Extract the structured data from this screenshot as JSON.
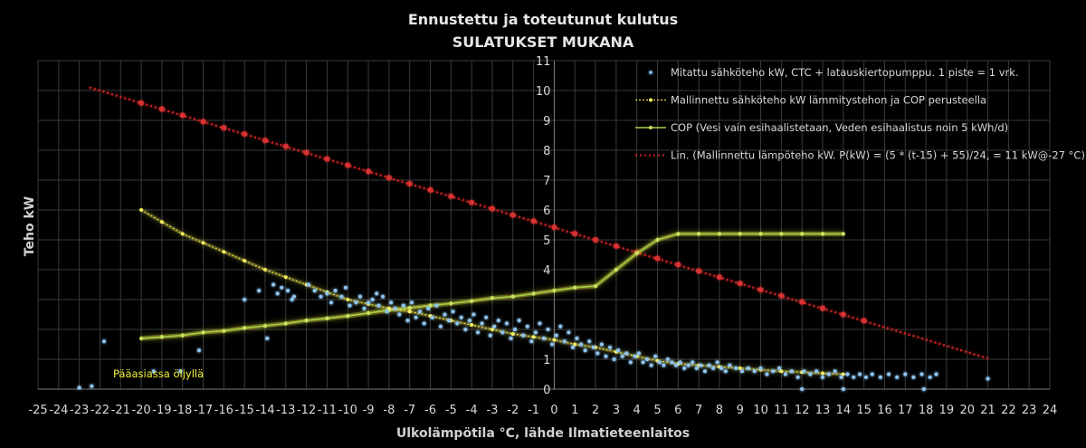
{
  "chart_data": {
    "type": "scatter",
    "title": "Ennustettu ja toteutunut kulutus",
    "subtitle": "SULATUKSET MUKANA",
    "xlabel": "Ulkolämpötila °C, lähde Ilmatieteenlaitos",
    "ylabel": "Teho kW",
    "xlim": [
      -25,
      24
    ],
    "ylim": [
      0,
      11
    ],
    "x_ticks": [
      -25,
      -24,
      -23,
      -22,
      -21,
      -20,
      -19,
      -18,
      -17,
      -16,
      -15,
      -14,
      -13,
      -12,
      -11,
      -10,
      -9,
      -8,
      -7,
      -6,
      -5,
      -4,
      -3,
      -2,
      -1,
      0,
      1,
      2,
      3,
      4,
      5,
      6,
      7,
      8,
      9,
      10,
      11,
      12,
      13,
      14,
      15,
      16,
      17,
      18,
      19,
      20,
      21,
      22,
      23,
      24
    ],
    "y_ticks": [
      0,
      1,
      2,
      3,
      4,
      5,
      6,
      7,
      8,
      9,
      10,
      11
    ],
    "y_tick_labels": [
      "0",
      "1",
      "",
      "",
      "4",
      "5",
      "6",
      "7",
      "8",
      "9",
      "10",
      "11"
    ],
    "grid": true,
    "legend_position": "top-right",
    "annotation": "Pääasiassa öljyllä",
    "series": [
      {
        "name": "Mitattu sähköteho kW, CTC + latauskiertopumppu.  1 piste = 1 vrk.",
        "kind": "scatter",
        "color": "#8ec4f0",
        "points": [
          [
            -23,
            0.05
          ],
          [
            -22.4,
            0.1
          ],
          [
            -21.8,
            1.6
          ],
          [
            -19.4,
            0.6
          ],
          [
            -18.1,
            0.6
          ],
          [
            -17.2,
            1.3
          ],
          [
            -15,
            3.0
          ],
          [
            -14.3,
            3.3
          ],
          [
            -13.9,
            1.7
          ],
          [
            -13.6,
            3.5
          ],
          [
            -13.4,
            3.2
          ],
          [
            -13.2,
            3.4
          ],
          [
            -12.9,
            3.3
          ],
          [
            -12.7,
            3.0
          ],
          [
            -12.6,
            3.1
          ],
          [
            -11.9,
            3.5
          ],
          [
            -11.6,
            3.3
          ],
          [
            -11.3,
            3.1
          ],
          [
            -11.0,
            3.2
          ],
          [
            -10.8,
            2.9
          ],
          [
            -10.6,
            3.3
          ],
          [
            -10.3,
            3.1
          ],
          [
            -10.1,
            3.4
          ],
          [
            -9.9,
            2.8
          ],
          [
            -9.6,
            2.9
          ],
          [
            -9.4,
            3.1
          ],
          [
            -9.2,
            2.7
          ],
          [
            -9.0,
            2.9
          ],
          [
            -8.8,
            3.0
          ],
          [
            -8.6,
            3.2
          ],
          [
            -8.5,
            2.8
          ],
          [
            -8.3,
            3.1
          ],
          [
            -8.1,
            2.6
          ],
          [
            -7.9,
            2.9
          ],
          [
            -7.7,
            2.7
          ],
          [
            -7.5,
            2.5
          ],
          [
            -7.3,
            2.8
          ],
          [
            -7.1,
            2.3
          ],
          [
            -6.9,
            2.9
          ],
          [
            -6.7,
            2.4
          ],
          [
            -6.5,
            2.6
          ],
          [
            -6.3,
            2.2
          ],
          [
            -6.1,
            2.7
          ],
          [
            -5.9,
            2.4
          ],
          [
            -5.7,
            2.8
          ],
          [
            -5.5,
            2.1
          ],
          [
            -5.3,
            2.5
          ],
          [
            -5.1,
            2.3
          ],
          [
            -4.9,
            2.6
          ],
          [
            -4.7,
            2.2
          ],
          [
            -4.5,
            2.4
          ],
          [
            -4.3,
            2.0
          ],
          [
            -4.1,
            2.3
          ],
          [
            -3.9,
            2.5
          ],
          [
            -3.7,
            1.9
          ],
          [
            -3.5,
            2.2
          ],
          [
            -3.3,
            2.4
          ],
          [
            -3.1,
            1.8
          ],
          [
            -2.9,
            2.1
          ],
          [
            -2.7,
            2.3
          ],
          [
            -2.5,
            1.9
          ],
          [
            -2.3,
            2.2
          ],
          [
            -2.1,
            1.7
          ],
          [
            -1.9,
            2.0
          ],
          [
            -1.7,
            2.3
          ],
          [
            -1.5,
            1.8
          ],
          [
            -1.3,
            2.1
          ],
          [
            -1.1,
            1.6
          ],
          [
            -0.9,
            1.9
          ],
          [
            -0.7,
            2.2
          ],
          [
            -0.5,
            1.7
          ],
          [
            -0.3,
            2.0
          ],
          [
            -0.1,
            1.5
          ],
          [
            0.1,
            1.8
          ],
          [
            0.3,
            2.1
          ],
          [
            0.5,
            1.6
          ],
          [
            0.7,
            1.9
          ],
          [
            0.9,
            1.4
          ],
          [
            1.1,
            1.7
          ],
          [
            1.3,
            1.5
          ],
          [
            1.5,
            1.3
          ],
          [
            1.7,
            1.6
          ],
          [
            1.9,
            1.4
          ],
          [
            2.1,
            1.2
          ],
          [
            2.3,
            1.5
          ],
          [
            2.5,
            1.1
          ],
          [
            2.7,
            1.4
          ],
          [
            2.9,
            1.0
          ],
          [
            3.1,
            1.3
          ],
          [
            3.3,
            1.1
          ],
          [
            3.5,
            1.2
          ],
          [
            3.7,
            0.9
          ],
          [
            3.9,
            1.1
          ],
          [
            4.1,
            1.2
          ],
          [
            4.3,
            0.9
          ],
          [
            4.5,
            1.0
          ],
          [
            4.7,
            0.8
          ],
          [
            4.9,
            1.1
          ],
          [
            5.1,
            0.9
          ],
          [
            5.3,
            0.8
          ],
          [
            5.5,
            1.0
          ],
          [
            5.7,
            0.9
          ],
          [
            5.9,
            0.8
          ],
          [
            6.1,
            0.9
          ],
          [
            6.3,
            0.7
          ],
          [
            6.5,
            0.8
          ],
          [
            6.7,
            0.9
          ],
          [
            6.9,
            0.7
          ],
          [
            7.1,
            0.8
          ],
          [
            7.3,
            0.6
          ],
          [
            7.5,
            0.8
          ],
          [
            7.7,
            0.7
          ],
          [
            7.9,
            0.9
          ],
          [
            8.1,
            0.7
          ],
          [
            8.3,
            0.6
          ],
          [
            8.5,
            0.8
          ],
          [
            8.8,
            0.7
          ],
          [
            9.1,
            0.6
          ],
          [
            9.4,
            0.7
          ],
          [
            9.7,
            0.6
          ],
          [
            10.0,
            0.7
          ],
          [
            10.3,
            0.5
          ],
          [
            10.6,
            0.6
          ],
          [
            10.9,
            0.7
          ],
          [
            11.2,
            0.5
          ],
          [
            11.5,
            0.6
          ],
          [
            11.8,
            0.4
          ],
          [
            12.1,
            0.6
          ],
          [
            12.4,
            0.5
          ],
          [
            12.7,
            0.6
          ],
          [
            13.0,
            0.4
          ],
          [
            13.3,
            0.5
          ],
          [
            13.6,
            0.6
          ],
          [
            13.9,
            0.4
          ],
          [
            14.2,
            0.5
          ],
          [
            14.5,
            0.4
          ],
          [
            14.8,
            0.5
          ],
          [
            15.1,
            0.4
          ],
          [
            15.4,
            0.5
          ],
          [
            15.8,
            0.4
          ],
          [
            16.2,
            0.5
          ],
          [
            16.6,
            0.4
          ],
          [
            17.0,
            0.5
          ],
          [
            17.4,
            0.4
          ],
          [
            17.8,
            0.5
          ],
          [
            18.2,
            0.4
          ],
          [
            18.5,
            0.5
          ],
          [
            12.0,
            0.0
          ],
          [
            14.0,
            0.0
          ],
          [
            17.9,
            0.0
          ],
          [
            21.0,
            0.35
          ]
        ]
      },
      {
        "name": "Mallinnettu sähköteho kW lämmitystehon ja COP perusteella",
        "kind": "line-dotted-markers",
        "color": "#f0e040",
        "points": [
          [
            -20,
            6.0
          ],
          [
            -19,
            5.6
          ],
          [
            -18,
            5.2
          ],
          [
            -17,
            4.9
          ],
          [
            -16,
            4.6
          ],
          [
            -15,
            4.3
          ],
          [
            -14,
            4.0
          ],
          [
            -13,
            3.75
          ],
          [
            -12,
            3.5
          ],
          [
            -11,
            3.25
          ],
          [
            -10,
            3.0
          ],
          [
            -9,
            2.85
          ],
          [
            -8,
            2.7
          ],
          [
            -7,
            2.6
          ],
          [
            -6,
            2.45
          ],
          [
            -5,
            2.3
          ],
          [
            -4,
            2.15
          ],
          [
            -3,
            2.0
          ],
          [
            -2,
            1.85
          ],
          [
            -1,
            1.75
          ],
          [
            0,
            1.65
          ],
          [
            1,
            1.5
          ],
          [
            2,
            1.4
          ],
          [
            3,
            1.25
          ],
          [
            4,
            1.1
          ],
          [
            5,
            0.95
          ],
          [
            6,
            0.85
          ],
          [
            7,
            0.8
          ],
          [
            8,
            0.75
          ],
          [
            9,
            0.7
          ],
          [
            10,
            0.65
          ],
          [
            11,
            0.6
          ],
          [
            12,
            0.57
          ],
          [
            13,
            0.53
          ],
          [
            14,
            0.5
          ]
        ]
      },
      {
        "name": "COP (Vesi vain esihaalistetaan, Veden esihaalistus noin 5 kWh/d)",
        "kind": "line-markers",
        "color": "#a8d048",
        "points": [
          [
            -20,
            1.7
          ],
          [
            -19,
            1.75
          ],
          [
            -18,
            1.8
          ],
          [
            -17,
            1.9
          ],
          [
            -16,
            1.95
          ],
          [
            -15,
            2.05
          ],
          [
            -14,
            2.12
          ],
          [
            -13,
            2.2
          ],
          [
            -12,
            2.3
          ],
          [
            -11,
            2.37
          ],
          [
            -10,
            2.45
          ],
          [
            -9,
            2.55
          ],
          [
            -8,
            2.65
          ],
          [
            -7,
            2.72
          ],
          [
            -6,
            2.8
          ],
          [
            -5,
            2.87
          ],
          [
            -4,
            2.95
          ],
          [
            -3,
            3.05
          ],
          [
            -2,
            3.1
          ],
          [
            -1,
            3.2
          ],
          [
            0,
            3.3
          ],
          [
            1,
            3.4
          ],
          [
            2,
            3.45
          ],
          [
            3,
            4.0
          ],
          [
            4,
            4.55
          ],
          [
            5,
            5.0
          ],
          [
            6,
            5.2
          ],
          [
            7,
            5.2
          ],
          [
            8,
            5.2
          ],
          [
            9,
            5.2
          ],
          [
            10,
            5.2
          ],
          [
            11,
            5.2
          ],
          [
            12,
            5.2
          ],
          [
            13,
            5.2
          ],
          [
            14,
            5.2
          ]
        ]
      },
      {
        "name": "Lin. (Mallinnettu lämpöteho kW. P(kW) = (5 * (t-15) + 55)/24, = 11 kW@-27 °C)",
        "kind": "line-trend",
        "color": "#cc2222",
        "points": [
          [
            -22.5,
            10.1
          ],
          [
            21,
            1.03
          ]
        ],
        "markers": [
          [
            -20,
            9.58
          ],
          [
            -19,
            9.38
          ],
          [
            -18,
            9.17
          ],
          [
            -17,
            8.96
          ],
          [
            -16,
            8.75
          ],
          [
            -15,
            8.54
          ],
          [
            -14,
            8.33
          ],
          [
            -13,
            8.13
          ],
          [
            -12,
            7.92
          ],
          [
            -11,
            7.71
          ],
          [
            -10,
            7.5
          ],
          [
            -9,
            7.29
          ],
          [
            -8,
            7.08
          ],
          [
            -7,
            6.88
          ],
          [
            -6,
            6.67
          ],
          [
            -5,
            6.46
          ],
          [
            -4,
            6.25
          ],
          [
            -3,
            6.04
          ],
          [
            -2,
            5.83
          ],
          [
            -1,
            5.63
          ],
          [
            0,
            5.42
          ],
          [
            1,
            5.21
          ],
          [
            2,
            5.0
          ],
          [
            3,
            4.79
          ],
          [
            4,
            4.58
          ],
          [
            5,
            4.38
          ],
          [
            6,
            4.17
          ],
          [
            7,
            3.96
          ],
          [
            8,
            3.75
          ],
          [
            9,
            3.54
          ],
          [
            10,
            3.33
          ],
          [
            11,
            3.13
          ],
          [
            12,
            2.92
          ],
          [
            13,
            2.71
          ],
          [
            14,
            2.5
          ],
          [
            15,
            2.29
          ]
        ]
      }
    ]
  }
}
